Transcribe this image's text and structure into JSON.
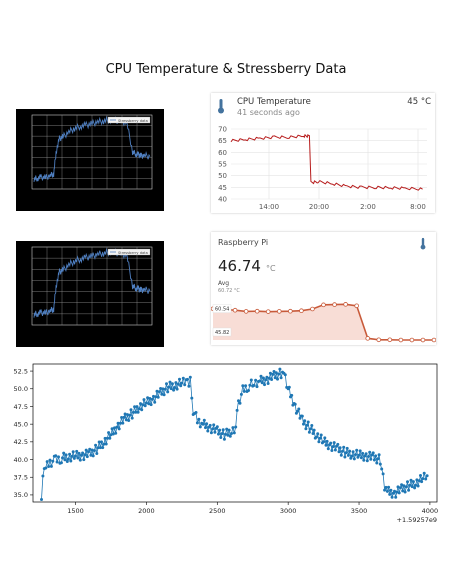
{
  "title": "CPU Temperature & Stressberry Data",
  "chart_data": [
    {
      "type": "line",
      "id": "dark-1",
      "legend": [
        "Stressberry data"
      ],
      "legend_position": "top-right",
      "grid": true,
      "ylim": [
        35,
        57
      ],
      "series": [
        {
          "name": "Stressberry data",
          "color": "#4f7fc0",
          "x": [
            0,
            3,
            6,
            10,
            14,
            17,
            19,
            22,
            25,
            30,
            35,
            40,
            45,
            50,
            55,
            60,
            65,
            70,
            75,
            80,
            85,
            88,
            90,
            92,
            95,
            100
          ],
          "y": [
            38,
            38.2,
            38.5,
            38.4,
            39,
            39.5,
            46,
            50,
            50.5,
            52,
            53,
            53.6,
            54,
            54.4,
            55,
            55.2,
            55.6,
            55.4,
            55,
            54.8,
            46,
            45.4,
            45.2,
            44.8,
            45,
            44.6
          ]
        }
      ]
    },
    {
      "type": "line",
      "id": "ha-history",
      "grid": true,
      "ylim": [
        40,
        70
      ],
      "yticks": [
        40,
        45,
        50,
        55,
        60,
        65,
        70
      ],
      "xticks": [
        "14:00",
        "20:00",
        "2:00",
        "8:00"
      ],
      "series": [
        {
          "color": "#b71c1c",
          "x": [
            0,
            1,
            2,
            3,
            4,
            5,
            5.4,
            5.5,
            6,
            7,
            8,
            9,
            10,
            11,
            12,
            13.2
          ],
          "y": [
            65,
            65.5,
            66,
            66.5,
            66.5,
            67,
            67,
            47,
            47.5,
            46.5,
            45.5,
            45,
            45,
            44.8,
            44.6,
            44.2
          ]
        }
      ]
    },
    {
      "type": "line",
      "id": "dark-2",
      "legend": [
        "Stressberry data"
      ],
      "legend_position": "top-right",
      "grid": true,
      "ylim": [
        35,
        57
      ],
      "series": [
        {
          "name": "Stressberry data",
          "color": "#4f7fc0",
          "x": [
            0,
            3,
            6,
            10,
            14,
            17,
            19,
            22,
            25,
            30,
            35,
            40,
            45,
            50,
            55,
            60,
            65,
            70,
            75,
            80,
            85,
            88,
            90,
            92,
            95,
            100
          ],
          "y": [
            38,
            38.2,
            38.5,
            38.4,
            39,
            39.5,
            46,
            50,
            50.5,
            52,
            53,
            53.6,
            54,
            54.4,
            55,
            55.2,
            55.6,
            55.4,
            55,
            54.8,
            46,
            45.4,
            45.2,
            44.8,
            45,
            44.6
          ]
        }
      ]
    },
    {
      "type": "area",
      "id": "rpi-card",
      "ylim": [
        45.82,
        60.54
      ],
      "min_label": "45.82",
      "max_label": "60.54",
      "series": [
        {
          "color": "#c85a3a",
          "fill": "#f8ddd6",
          "y": [
            58.6,
            58.3,
            58.0,
            57.5,
            57.6,
            57.4,
            57.5,
            57.6,
            57.8,
            58.5,
            60.2,
            60.3,
            60.4,
            59.8,
            46.5,
            45.9,
            45.9,
            45.8,
            45.8,
            45.8,
            45.82
          ]
        }
      ]
    },
    {
      "type": "scatter",
      "id": "scatter-bottom",
      "connected": true,
      "grid": false,
      "xlim": [
        1200,
        4050
      ],
      "ylim": [
        34,
        53.5
      ],
      "xticks": [
        1500,
        2000,
        2500,
        3000,
        3500,
        4000
      ],
      "yticks": [
        35.0,
        37.5,
        40.0,
        42.5,
        45.0,
        47.5,
        50.0,
        52.5
      ],
      "offset_label": "+1.59257e9",
      "series": [
        {
          "color": "#1f77b4",
          "x": [
            1260,
            1270,
            1290,
            1320,
            1360,
            1400,
            1450,
            1500,
            1550,
            1600,
            1650,
            1700,
            1750,
            1800,
            1850,
            1900,
            1950,
            2000,
            2050,
            2100,
            2150,
            2200,
            2250,
            2290,
            2310,
            2330,
            2360,
            2400,
            2450,
            2500,
            2550,
            2600,
            2630,
            2650,
            2680,
            2720,
            2760,
            2800,
            2850,
            2900,
            2950,
            2970,
            3000,
            3050,
            3100,
            3150,
            3200,
            3250,
            3300,
            3350,
            3400,
            3450,
            3500,
            3550,
            3600,
            3650,
            3680,
            3700,
            3750,
            3800,
            3850,
            3900,
            3950,
            3980
          ],
          "y": [
            35.0,
            38.0,
            38.8,
            39.6,
            39.9,
            40.2,
            40.4,
            40.5,
            40.6,
            40.8,
            41.5,
            42.5,
            43.5,
            44.8,
            45.8,
            46.5,
            47.5,
            48.0,
            48.6,
            49.4,
            50.2,
            50.5,
            50.8,
            51.0,
            51.0,
            47.0,
            45.5,
            45.0,
            44.5,
            44.0,
            43.5,
            44.0,
            44.6,
            48.0,
            49.8,
            50.4,
            50.8,
            51.1,
            51.3,
            51.8,
            52.2,
            52.5,
            50.0,
            47.5,
            45.5,
            44.5,
            43.5,
            42.5,
            42.0,
            41.5,
            41.0,
            40.8,
            40.6,
            40.5,
            40.3,
            40.0,
            36.0,
            35.5,
            35.2,
            35.8,
            36.3,
            36.7,
            37.3,
            37.7
          ]
        }
      ]
    }
  ],
  "ha_card": {
    "title": "CPU Temperature",
    "state": "45 °C",
    "subtitle": "41 seconds ago",
    "icon": "thermometer-icon"
  },
  "rpi_card": {
    "name": "Raspberry Pi",
    "value": "46.74",
    "unit": "°C",
    "avg_label": "Avg",
    "avg_value": "60.72 °C",
    "icon": "thermometer-icon"
  }
}
